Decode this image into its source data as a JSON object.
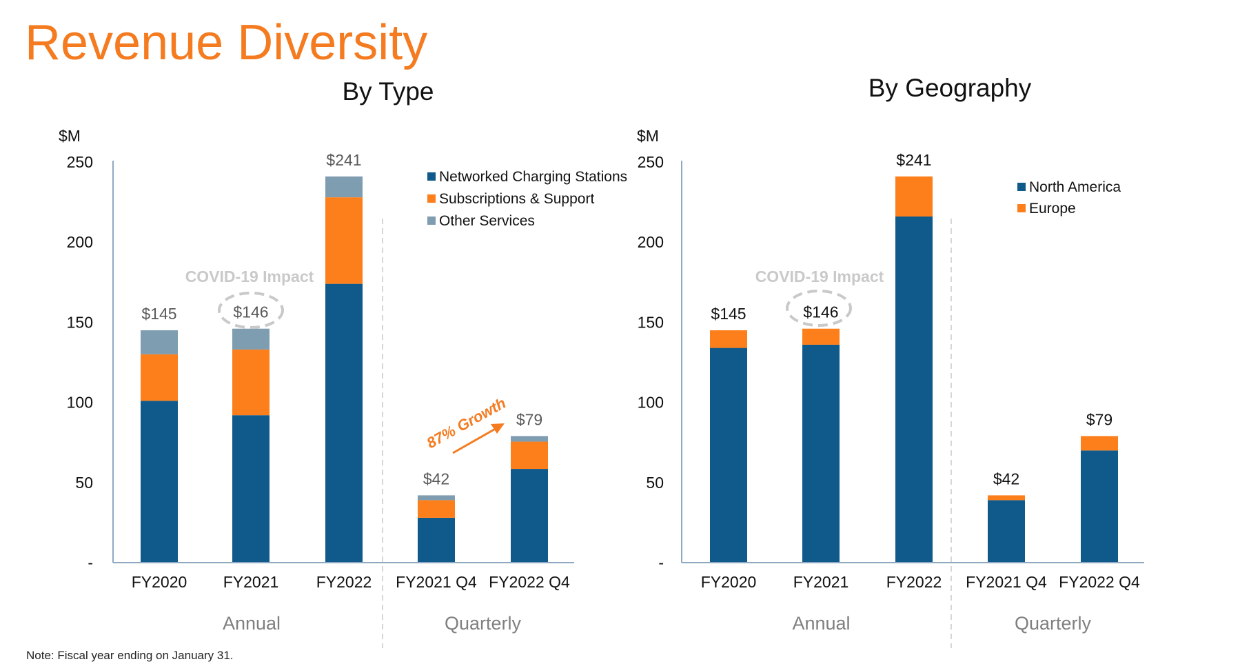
{
  "page": {
    "title": "Revenue Diversity",
    "note": "Note: Fiscal year ending on January 31.",
    "colors": {
      "title": "#f47b20",
      "blue": "#105a8b",
      "orange": "#fd7f1c",
      "gray": "#7f9db0",
      "axis": "#8ea9c1"
    }
  },
  "chart_data": [
    {
      "type": "bar",
      "stacked": true,
      "title": "By Type",
      "ylabel": "$M",
      "ylim": [
        0,
        250
      ],
      "yticks": [
        "-",
        "50",
        "100",
        "150",
        "200",
        "250"
      ],
      "categories": [
        "FY2020",
        "FY2021",
        "FY2022",
        "FY2021 Q4",
        "FY2022 Q4"
      ],
      "groups": [
        {
          "label": "Annual",
          "categories": 3
        },
        {
          "label": "Quarterly",
          "categories": 2
        }
      ],
      "totals": [
        "$145",
        "$146",
        "$241",
        "$42",
        "$79"
      ],
      "series": [
        {
          "name": "Networked Charging Stations",
          "color": "#105a8b",
          "values": [
            101,
            92,
            174,
            28,
            58.5
          ]
        },
        {
          "name": "Subscriptions & Support",
          "color": "#fd7f1c",
          "values": [
            29,
            41,
            54,
            11,
            17
          ]
        },
        {
          "name": "Other Services",
          "color": "#7f9db0",
          "values": [
            15,
            13,
            13,
            3,
            3.5
          ]
        }
      ],
      "legend": "top-right",
      "annotations": {
        "covid": "COVID-19 Impact",
        "growth": "87% Growth"
      }
    },
    {
      "type": "bar",
      "stacked": true,
      "title": "By Geography",
      "ylabel": "$M",
      "ylim": [
        0,
        250
      ],
      "yticks": [
        "-",
        "50",
        "100",
        "150",
        "200",
        "250"
      ],
      "categories": [
        "FY2020",
        "FY2021",
        "FY2022",
        "FY2021 Q4",
        "FY2022 Q4"
      ],
      "groups": [
        {
          "label": "Annual",
          "categories": 3
        },
        {
          "label": "Quarterly",
          "categories": 2
        }
      ],
      "totals": [
        "$145",
        "$146",
        "$241",
        "$42",
        "$79"
      ],
      "series": [
        {
          "name": "North America",
          "color": "#105a8b",
          "values": [
            134,
            136,
            216,
            39,
            70
          ]
        },
        {
          "name": "Europe",
          "color": "#fd7f1c",
          "values": [
            11,
            10,
            25,
            3,
            9
          ]
        }
      ],
      "legend": "top-right",
      "annotations": {
        "covid": "COVID-19 Impact"
      }
    }
  ]
}
